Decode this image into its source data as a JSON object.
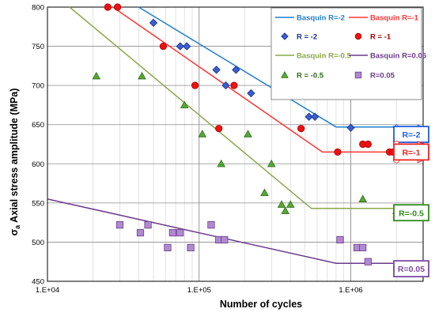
{
  "chart_data": {
    "type": "scatter",
    "title": "",
    "xlabel": "Number of cycles",
    "ylabel_symbol": "σ",
    "ylabel_sub": "a",
    "ylabel": "Axial stress amplitude (MPa)",
    "x_scale": "log",
    "xlim": [
      10000,
      3000000
    ],
    "ylim": [
      450,
      800
    ],
    "grid": true,
    "legend_position": "top-right",
    "x_ticks": [
      {
        "value": 10000,
        "label": "1.E+04"
      },
      {
        "value": 100000,
        "label": "1.E+05"
      },
      {
        "value": 1000000,
        "label": "1.E+06"
      }
    ],
    "y_ticks": [
      450,
      500,
      550,
      600,
      650,
      700,
      750,
      800
    ],
    "fit_lines": [
      {
        "name": "Basquin R=-2",
        "color": "#1f7fd0",
        "points": [
          [
            40000,
            800
          ],
          [
            800000,
            647
          ],
          [
            2000000,
            647
          ]
        ]
      },
      {
        "name": "Basquin R=-1",
        "color": "#ff3333",
        "points": [
          [
            27000,
            800
          ],
          [
            650000,
            615
          ],
          [
            2000000,
            615
          ]
        ]
      },
      {
        "name": "Basquin R=-0.5",
        "color": "#8aa84a",
        "points": [
          [
            14000,
            800
          ],
          [
            550000,
            543
          ],
          [
            2000000,
            543
          ]
        ]
      },
      {
        "name": "Basquin R=0.05",
        "color": "#6b3a8c",
        "points": [
          [
            10000,
            555
          ],
          [
            800000,
            473
          ],
          [
            2000000,
            473
          ]
        ]
      }
    ],
    "series": [
      {
        "name": "R = -2",
        "marker": "diamond",
        "fill": "#3a5fcd",
        "stroke": "#1a2f8a",
        "points": [
          [
            50000,
            780
          ],
          [
            75000,
            750
          ],
          [
            83000,
            750
          ],
          [
            130000,
            720
          ],
          [
            175000,
            720
          ],
          [
            150000,
            700
          ],
          [
            220000,
            690
          ],
          [
            320000,
            690
          ],
          [
            530000,
            660
          ],
          [
            580000,
            660
          ],
          [
            1000000,
            646
          ]
        ]
      },
      {
        "name": "R = -1",
        "marker": "circle",
        "fill": "#ee1111",
        "stroke": "#aa0000",
        "points": [
          [
            25000,
            800
          ],
          [
            29000,
            800
          ],
          [
            58000,
            750
          ],
          [
            94000,
            700
          ],
          [
            170000,
            700
          ],
          [
            135000,
            645
          ],
          [
            470000,
            645
          ],
          [
            820000,
            615
          ],
          [
            1200000,
            625
          ],
          [
            1300000,
            625
          ],
          [
            1800000,
            615
          ],
          [
            1900000,
            615
          ]
        ]
      },
      {
        "name": "R = -0.5",
        "marker": "triangle",
        "fill": "#55aa33",
        "stroke": "#2d6a1a",
        "points": [
          [
            21000,
            712
          ],
          [
            42000,
            712
          ],
          [
            80000,
            675
          ],
          [
            105000,
            638
          ],
          [
            140000,
            600
          ],
          [
            210000,
            638
          ],
          [
            270000,
            563
          ],
          [
            300000,
            600
          ],
          [
            350000,
            548
          ],
          [
            370000,
            540
          ],
          [
            400000,
            548
          ],
          [
            1200000,
            555
          ],
          [
            2000000,
            540
          ],
          [
            2050000,
            535
          ],
          [
            2100000,
            540
          ]
        ]
      },
      {
        "name": "R=0.05",
        "marker": "square",
        "fill": "#b08ad0",
        "stroke": "#6b3a8c",
        "points": [
          [
            30000,
            522
          ],
          [
            41000,
            512
          ],
          [
            46000,
            522
          ],
          [
            62000,
            493
          ],
          [
            67000,
            512
          ],
          [
            75000,
            512
          ],
          [
            88000,
            493
          ],
          [
            120000,
            522
          ],
          [
            135000,
            503
          ],
          [
            147000,
            503
          ],
          [
            850000,
            503
          ],
          [
            1100000,
            493
          ],
          [
            1200000,
            493
          ],
          [
            1300000,
            475
          ]
        ]
      }
    ],
    "runouts": [
      {
        "label": "R=-2",
        "color": "#1f5fe0",
        "marker": "diamond",
        "ys": [
          646,
          629
        ]
      },
      {
        "label": "R=-1",
        "color": "#ee2222",
        "marker": "circle",
        "ys": [
          625,
          605
        ]
      },
      {
        "label": "R=-0.5",
        "color": "#2d8a1a",
        "marker": "triangle",
        "ys": [
          540,
          535
        ]
      },
      {
        "label": "R=0.05",
        "color": "#7a4aa0",
        "marker": "square",
        "ys": [
          466
        ]
      }
    ]
  }
}
